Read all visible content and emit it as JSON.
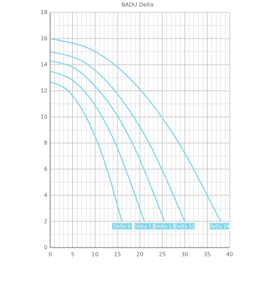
{
  "chart_data": {
    "type": "line",
    "title": "BADU Delta",
    "xlim": [
      0,
      40
    ],
    "xticks": [
      0,
      5,
      10,
      15,
      20,
      25,
      30,
      35,
      40
    ],
    "ylim": [
      0,
      18
    ],
    "yticks": [
      0,
      2,
      4,
      6,
      8,
      10,
      12,
      14,
      16,
      18
    ],
    "grid": true,
    "xminor": 1,
    "yminor": 1,
    "series": [
      {
        "name": "Delta 9",
        "color": "#7dd5ea",
        "x": [
          0,
          4,
          8,
          12,
          16
        ],
        "values": [
          12.7,
          12.0,
          10.0,
          6.7,
          2
        ]
      },
      {
        "name": "Delta 13",
        "color": "#7dd5ea",
        "x": [
          0,
          5,
          10,
          15,
          21
        ],
        "values": [
          13.5,
          12.8,
          10.9,
          7.6,
          2
        ]
      },
      {
        "name": "Delta 17",
        "color": "#7dd5ea",
        "x": [
          0,
          6,
          13,
          19,
          25.5
        ],
        "values": [
          14.3,
          13.6,
          11.1,
          7.5,
          2
        ]
      },
      {
        "name": "Delta 22",
        "color": "#7dd5ea",
        "x": [
          0,
          7.5,
          15,
          22.5,
          30
        ],
        "values": [
          15,
          14.2,
          11.75,
          7.7,
          2
        ]
      },
      {
        "name": "Delta 28",
        "color": "#7dd5ea",
        "x": [
          0,
          9.5,
          19,
          28.5,
          38
        ],
        "values": [
          16,
          15.1,
          12.5,
          8.1,
          2
        ]
      }
    ]
  }
}
